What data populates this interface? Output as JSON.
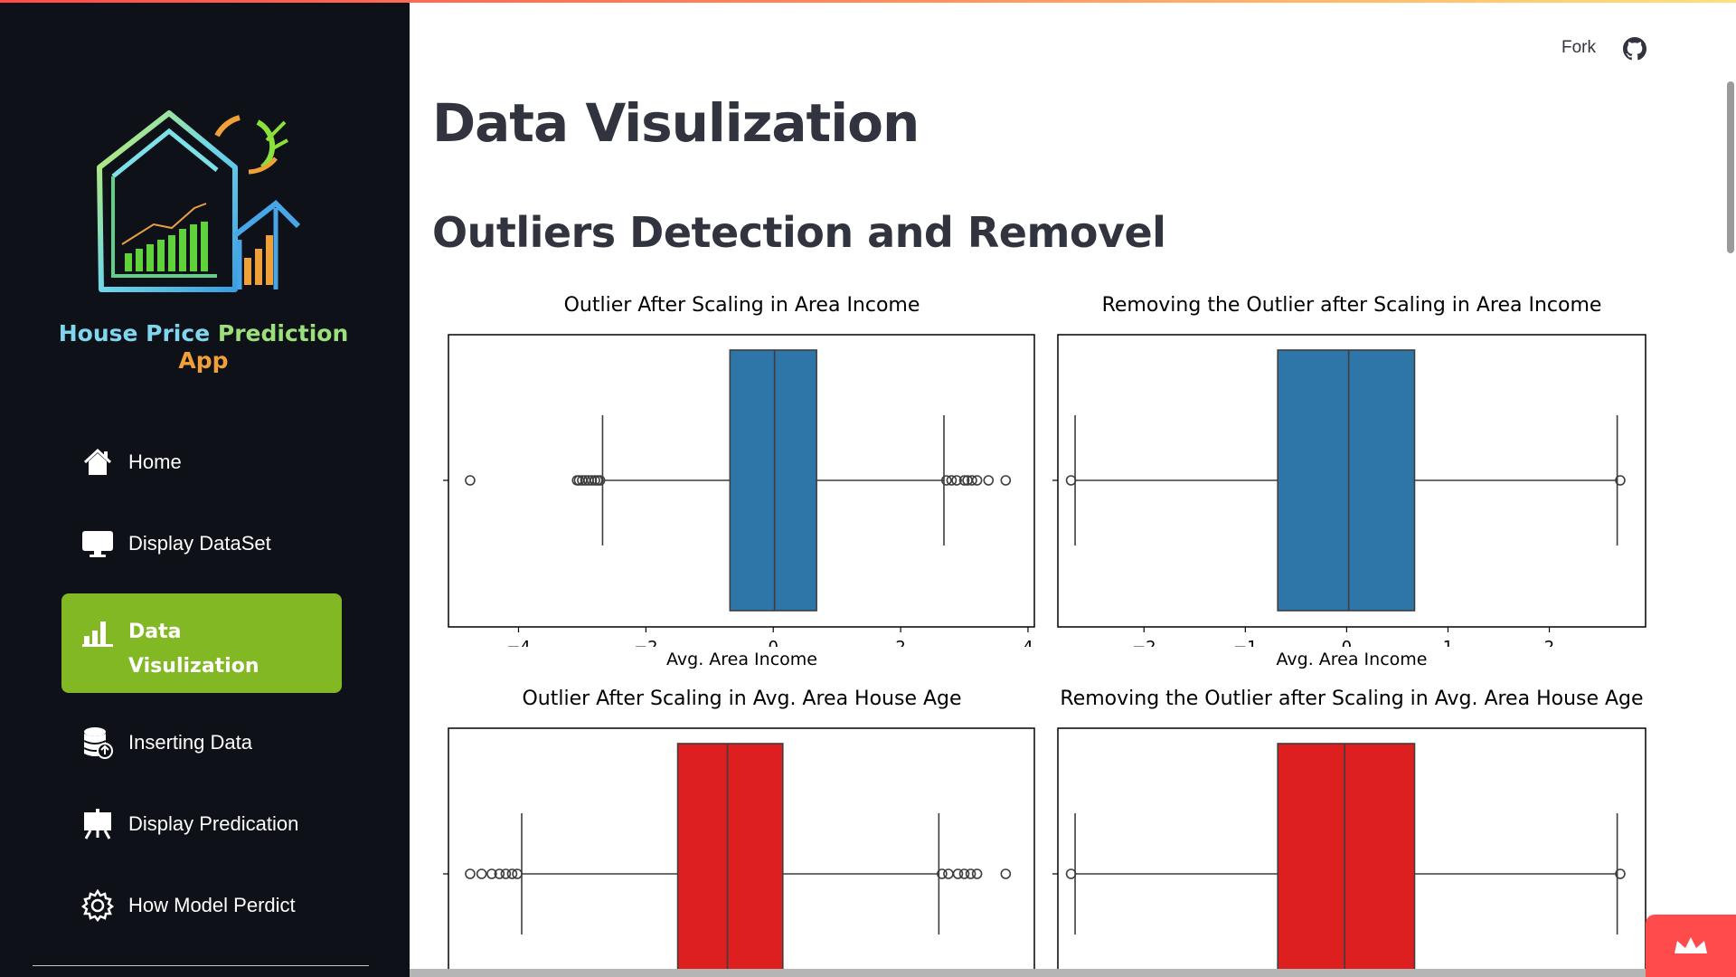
{
  "header": {
    "fork_label": "Fork",
    "github_icon": "github-icon"
  },
  "sidebar": {
    "title_words": [
      "House Price",
      "Prediction",
      "App"
    ],
    "items": [
      {
        "label": "Home",
        "icon": "home-icon"
      },
      {
        "label": "Display DataSet",
        "icon": "monitor-icon"
      },
      {
        "label": "Data Visulization",
        "icon": "bar-chart-icon",
        "active": true
      },
      {
        "label": "Inserting Data",
        "icon": "database-upload-icon"
      },
      {
        "label": "Display Predication",
        "icon": "presentation-icon"
      },
      {
        "label": "How Model Perdict",
        "icon": "gear-icon"
      }
    ],
    "active_color": "#82b823"
  },
  "main": {
    "title": "Data Visulization",
    "section_title": "Outliers Detection and Removel"
  },
  "chart_data": [
    {
      "type": "boxplot",
      "title": "Outlier After Scaling in Area Income",
      "xlabel": "Avg. Area Income",
      "color": "#2e75a8",
      "xlim": [
        -5.1,
        4.1
      ],
      "xticks": [
        -4,
        -2,
        0,
        2,
        4
      ],
      "box": {
        "q1": -0.68,
        "median": 0.02,
        "q3": 0.68,
        "whisker_low": -2.68,
        "whisker_high": 2.68
      },
      "outliers": [
        -4.76,
        -3.08,
        -3.05,
        -3.0,
        -2.95,
        -2.9,
        -2.85,
        -2.8,
        -2.76,
        -2.72,
        2.72,
        2.8,
        2.88,
        3.0,
        3.05,
        3.12,
        3.2,
        3.38,
        3.65
      ]
    },
    {
      "type": "boxplot",
      "title": "Removing the Outlier after Scaling in Area Income",
      "xlabel": "Avg. Area Income",
      "color": "#2e75a8",
      "xlim": [
        -2.85,
        2.95
      ],
      "xticks": [
        -2,
        -1,
        0,
        1,
        2
      ],
      "box": {
        "q1": -0.68,
        "median": 0.02,
        "q3": 0.67,
        "whisker_low": -2.68,
        "whisker_high": 2.67
      },
      "outliers": [
        -2.72,
        2.7
      ]
    },
    {
      "type": "boxplot",
      "title": "Outlier After Scaling in Avg. Area House Age",
      "xlabel": "",
      "color": "#dd1f1f",
      "xlim": [
        -5.1,
        4.1
      ],
      "xticks": [],
      "box": {
        "q1": -1.5,
        "median": -0.72,
        "q3": 0.15,
        "whisker_low": -3.95,
        "whisker_high": 2.6
      },
      "outliers": [
        -4.76,
        -4.58,
        -4.42,
        -4.3,
        -4.2,
        -4.1,
        -4.02,
        2.65,
        2.75,
        2.9,
        3.0,
        3.1,
        3.2,
        3.65
      ]
    },
    {
      "type": "boxplot",
      "title": "Removing the Outlier after Scaling in Avg. Area House Age",
      "xlabel": "",
      "color": "#dd1f1f",
      "xlim": [
        -2.85,
        2.95
      ],
      "xticks": [],
      "box": {
        "q1": -0.68,
        "median": -0.02,
        "q3": 0.67,
        "whisker_low": -2.68,
        "whisker_high": 2.67
      },
      "outliers": [
        -2.72,
        2.7
      ]
    }
  ]
}
